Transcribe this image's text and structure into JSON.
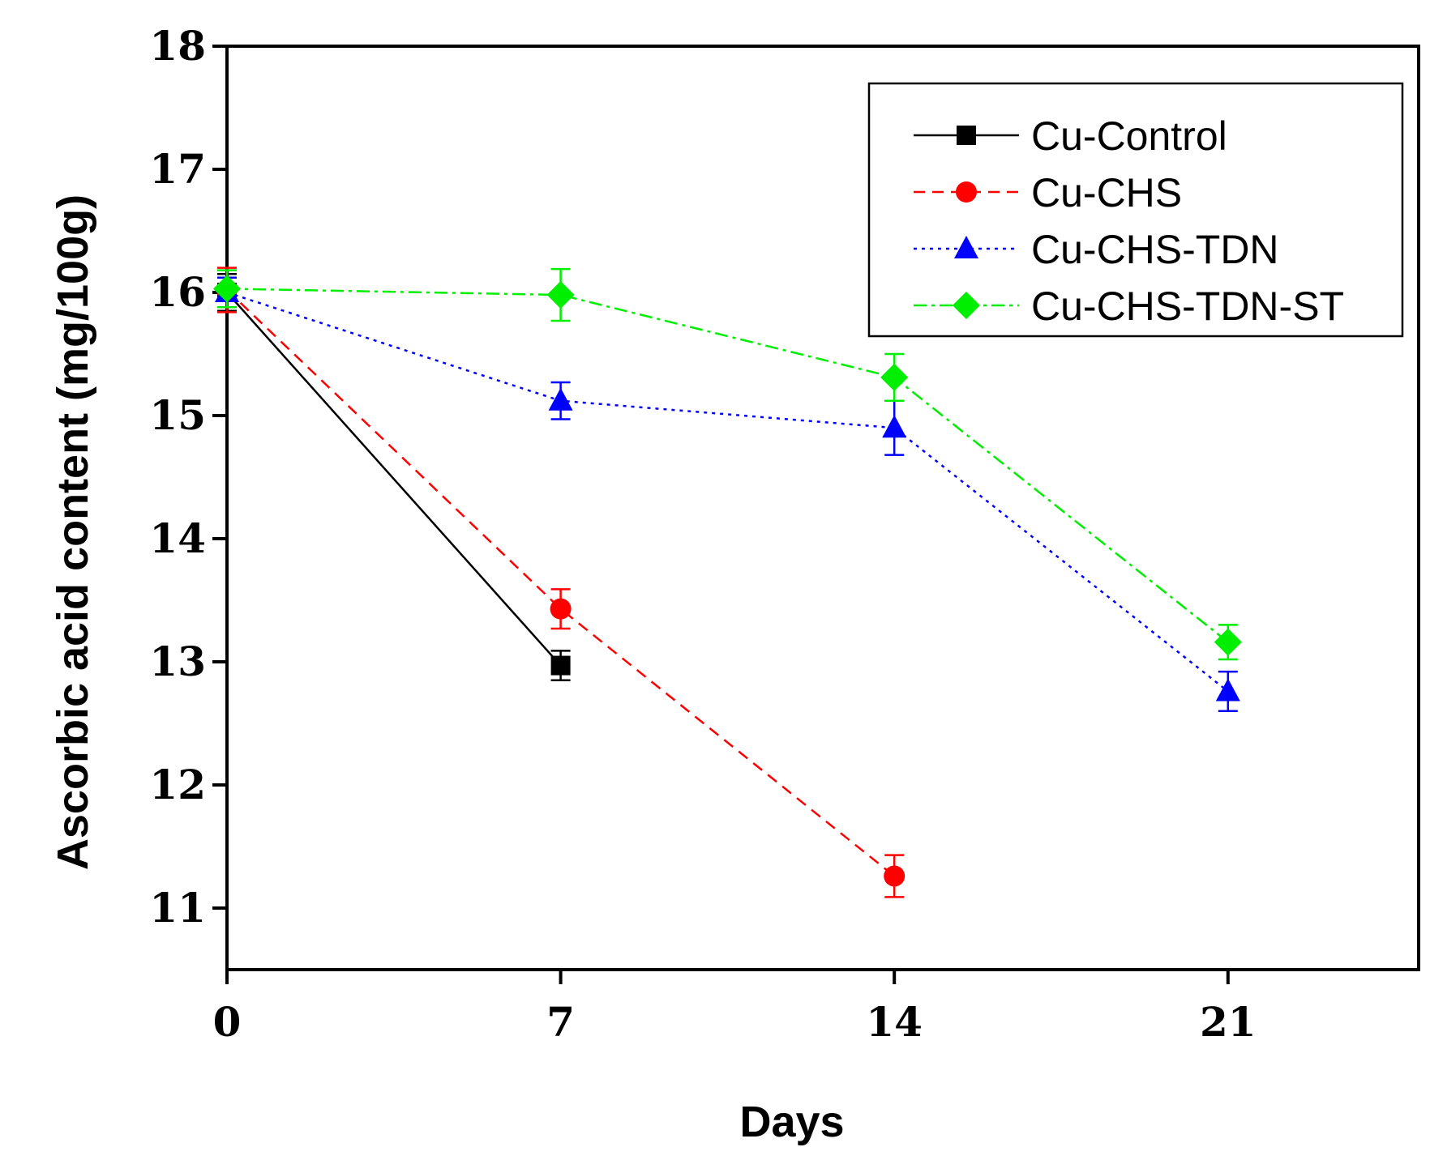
{
  "chart_data": {
    "type": "line",
    "title": "",
    "xlabel": "Days",
    "ylabel": "Ascorbic acid content (mg/100g)",
    "xlim": [
      0,
      25
    ],
    "ylim": [
      10.5,
      18
    ],
    "x_ticks": [
      0,
      7,
      14,
      21
    ],
    "y_ticks": [
      11,
      12,
      13,
      14,
      15,
      16,
      17,
      18
    ],
    "legend_position": "top-right",
    "series": [
      {
        "name": "Cu-Control",
        "color": "#000000",
        "dash": "solid",
        "marker": "square",
        "x": [
          0,
          7
        ],
        "values": [
          16.0,
          12.97
        ],
        "errors": [
          0.15,
          0.12
        ]
      },
      {
        "name": "Cu-CHS",
        "color": "#ff0000",
        "dash": "dashed",
        "marker": "circle",
        "x": [
          0,
          7,
          14
        ],
        "values": [
          16.02,
          13.43,
          11.26
        ],
        "errors": [
          0.18,
          0.16,
          0.17
        ]
      },
      {
        "name": "Cu-CHS-TDN",
        "color": "#0000ff",
        "dash": "dotted",
        "marker": "triangle",
        "x": [
          0,
          7,
          14,
          21
        ],
        "values": [
          16.0,
          15.12,
          14.9,
          12.76
        ],
        "errors": [
          0.12,
          0.15,
          0.22,
          0.16
        ]
      },
      {
        "name": "Cu-CHS-TDN-ST",
        "color": "#00ee00",
        "dash": "dashdot",
        "marker": "diamond",
        "x": [
          0,
          7,
          14,
          21
        ],
        "values": [
          16.03,
          15.98,
          15.31,
          13.16
        ],
        "errors": [
          0.15,
          0.21,
          0.19,
          0.14
        ]
      }
    ]
  }
}
